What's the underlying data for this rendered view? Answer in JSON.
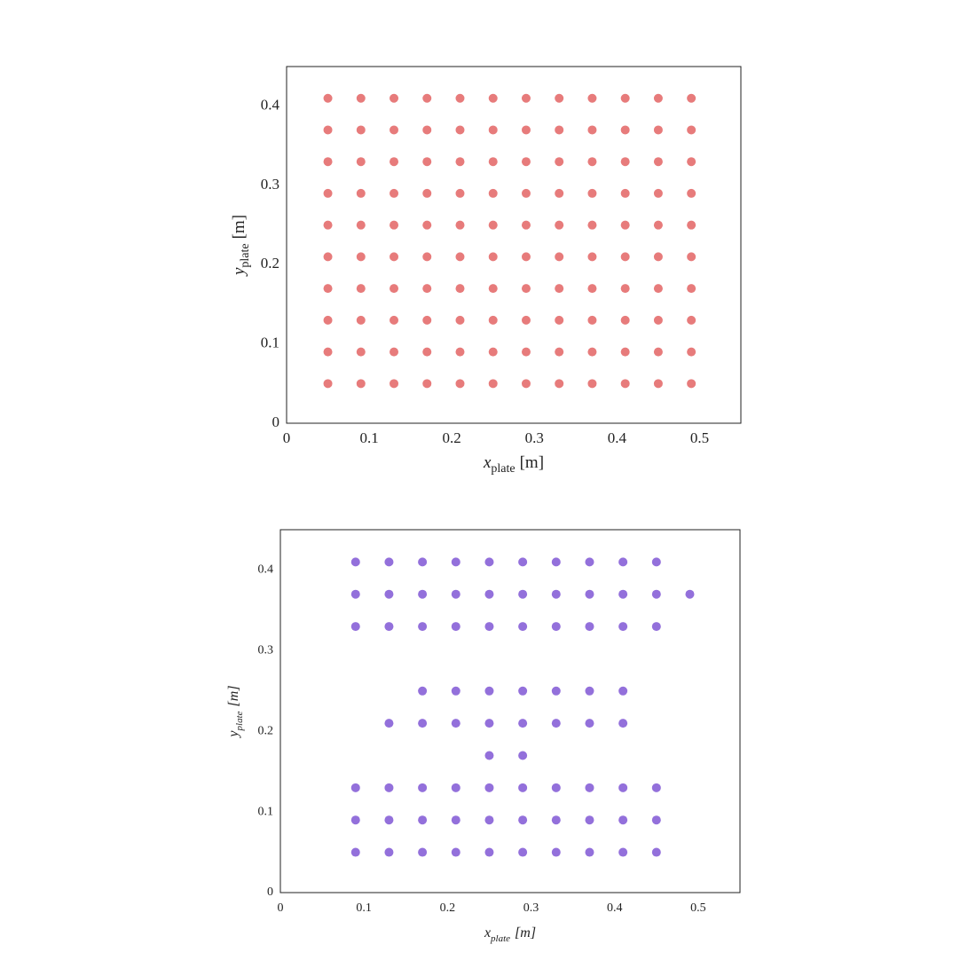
{
  "chart_data": [
    {
      "type": "scatter",
      "xlabel": {
        "symbol": "x",
        "subscript": "plate",
        "unit": "[m]"
      },
      "ylabel": {
        "symbol": "y",
        "subscript": "plate",
        "unit": "[m]"
      },
      "italic_labels": false,
      "xlim": [
        0,
        0.55
      ],
      "ylim": [
        0,
        0.45
      ],
      "xticks": [
        0,
        0.1,
        0.2,
        0.3,
        0.4,
        0.5
      ],
      "yticks": [
        0,
        0.1,
        0.2,
        0.3,
        0.4
      ],
      "series": [
        {
          "color": "#e77b7b",
          "x": [
            0.05,
            0.09,
            0.13,
            0.17,
            0.21,
            0.25,
            0.29,
            0.33,
            0.37,
            0.41,
            0.45,
            0.49,
            0.05,
            0.09,
            0.13,
            0.17,
            0.21,
            0.25,
            0.29,
            0.33,
            0.37,
            0.41,
            0.45,
            0.49,
            0.05,
            0.09,
            0.13,
            0.17,
            0.21,
            0.25,
            0.29,
            0.33,
            0.37,
            0.41,
            0.45,
            0.49,
            0.05,
            0.09,
            0.13,
            0.17,
            0.21,
            0.25,
            0.29,
            0.33,
            0.37,
            0.41,
            0.45,
            0.49,
            0.05,
            0.09,
            0.13,
            0.17,
            0.21,
            0.25,
            0.29,
            0.33,
            0.37,
            0.41,
            0.45,
            0.49,
            0.05,
            0.09,
            0.13,
            0.17,
            0.21,
            0.25,
            0.29,
            0.33,
            0.37,
            0.41,
            0.45,
            0.49,
            0.05,
            0.09,
            0.13,
            0.17,
            0.21,
            0.25,
            0.29,
            0.33,
            0.37,
            0.41,
            0.45,
            0.49,
            0.05,
            0.09,
            0.13,
            0.17,
            0.21,
            0.25,
            0.29,
            0.33,
            0.37,
            0.41,
            0.45,
            0.49,
            0.05,
            0.09,
            0.13,
            0.17,
            0.21,
            0.25,
            0.29,
            0.33,
            0.37,
            0.41,
            0.45,
            0.49,
            0.05,
            0.09,
            0.13,
            0.17,
            0.21,
            0.25,
            0.29,
            0.33,
            0.37,
            0.41,
            0.45,
            0.49
          ],
          "values": [
            0.05,
            0.05,
            0.05,
            0.05,
            0.05,
            0.05,
            0.05,
            0.05,
            0.05,
            0.05,
            0.05,
            0.05,
            0.09,
            0.09,
            0.09,
            0.09,
            0.09,
            0.09,
            0.09,
            0.09,
            0.09,
            0.09,
            0.09,
            0.09,
            0.13,
            0.13,
            0.13,
            0.13,
            0.13,
            0.13,
            0.13,
            0.13,
            0.13,
            0.13,
            0.13,
            0.13,
            0.17,
            0.17,
            0.17,
            0.17,
            0.17,
            0.17,
            0.17,
            0.17,
            0.17,
            0.17,
            0.17,
            0.17,
            0.21,
            0.21,
            0.21,
            0.21,
            0.21,
            0.21,
            0.21,
            0.21,
            0.21,
            0.21,
            0.21,
            0.21,
            0.25,
            0.25,
            0.25,
            0.25,
            0.25,
            0.25,
            0.25,
            0.25,
            0.25,
            0.25,
            0.25,
            0.25,
            0.29,
            0.29,
            0.29,
            0.29,
            0.29,
            0.29,
            0.29,
            0.29,
            0.29,
            0.29,
            0.29,
            0.29,
            0.33,
            0.33,
            0.33,
            0.33,
            0.33,
            0.33,
            0.33,
            0.33,
            0.33,
            0.33,
            0.33,
            0.33,
            0.37,
            0.37,
            0.37,
            0.37,
            0.37,
            0.37,
            0.37,
            0.37,
            0.37,
            0.37,
            0.37,
            0.37,
            0.41,
            0.41,
            0.41,
            0.41,
            0.41,
            0.41,
            0.41,
            0.41,
            0.41,
            0.41,
            0.41,
            0.41
          ]
        }
      ]
    },
    {
      "type": "scatter",
      "xlabel": {
        "symbol": "x",
        "subscript": "plate",
        "unit": "[m]"
      },
      "ylabel": {
        "symbol": "y",
        "subscript": "plate",
        "unit": "[m]"
      },
      "italic_labels": true,
      "xlim": [
        0,
        0.55
      ],
      "ylim": [
        0,
        0.45
      ],
      "xticks": [
        0,
        0.1,
        0.2,
        0.3,
        0.4,
        0.5
      ],
      "yticks": [
        0,
        0.1,
        0.2,
        0.3,
        0.4
      ],
      "series": [
        {
          "color": "#9370db",
          "x": [
            0.09,
            0.13,
            0.17,
            0.21,
            0.25,
            0.29,
            0.33,
            0.37,
            0.41,
            0.45,
            0.09,
            0.13,
            0.17,
            0.21,
            0.25,
            0.29,
            0.33,
            0.37,
            0.41,
            0.45,
            0.09,
            0.13,
            0.17,
            0.21,
            0.25,
            0.29,
            0.33,
            0.37,
            0.41,
            0.45,
            0.25,
            0.29,
            0.13,
            0.17,
            0.21,
            0.25,
            0.29,
            0.33,
            0.37,
            0.41,
            0.17,
            0.21,
            0.25,
            0.29,
            0.33,
            0.37,
            0.41,
            0.09,
            0.13,
            0.17,
            0.21,
            0.25,
            0.29,
            0.33,
            0.37,
            0.41,
            0.45,
            0.09,
            0.13,
            0.17,
            0.21,
            0.25,
            0.29,
            0.33,
            0.37,
            0.41,
            0.45,
            0.49,
            0.09,
            0.13,
            0.17,
            0.21,
            0.25,
            0.29,
            0.33,
            0.37,
            0.41,
            0.45
          ],
          "values": [
            0.05,
            0.05,
            0.05,
            0.05,
            0.05,
            0.05,
            0.05,
            0.05,
            0.05,
            0.05,
            0.09,
            0.09,
            0.09,
            0.09,
            0.09,
            0.09,
            0.09,
            0.09,
            0.09,
            0.09,
            0.13,
            0.13,
            0.13,
            0.13,
            0.13,
            0.13,
            0.13,
            0.13,
            0.13,
            0.13,
            0.17,
            0.17,
            0.21,
            0.21,
            0.21,
            0.21,
            0.21,
            0.21,
            0.21,
            0.21,
            0.25,
            0.25,
            0.25,
            0.25,
            0.25,
            0.25,
            0.25,
            0.33,
            0.33,
            0.33,
            0.33,
            0.33,
            0.33,
            0.33,
            0.33,
            0.33,
            0.33,
            0.37,
            0.37,
            0.37,
            0.37,
            0.37,
            0.37,
            0.37,
            0.37,
            0.37,
            0.37,
            0.37,
            0.41,
            0.41,
            0.41,
            0.41,
            0.41,
            0.41,
            0.41,
            0.41,
            0.41,
            0.41
          ]
        }
      ]
    }
  ]
}
